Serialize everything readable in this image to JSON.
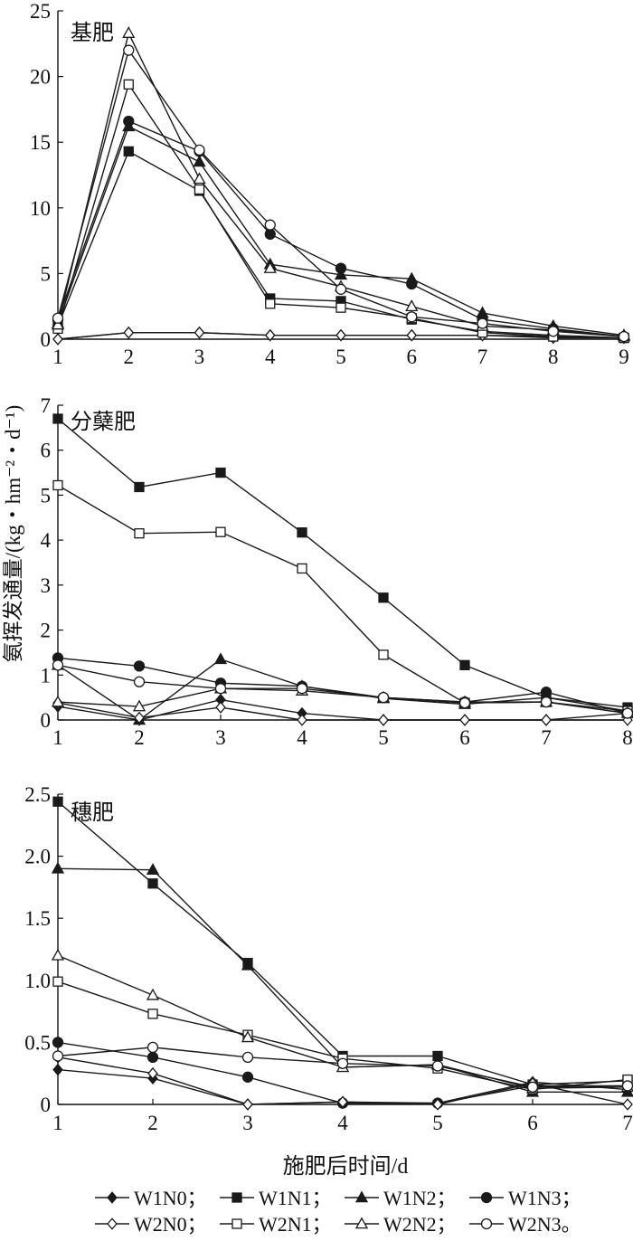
{
  "ylabel": "氨挥发通量/(kg・hm⁻²・d⁻¹)",
  "xlabel": "施肥后时间/d",
  "colors": {
    "ink": "#1a1a1a",
    "background": "#ffffff"
  },
  "legend": {
    "items": [
      {
        "label": "W1N0；",
        "marker": "diamond",
        "fill": "filled"
      },
      {
        "label": "W1N1；",
        "marker": "square",
        "fill": "filled"
      },
      {
        "label": "W1N2；",
        "marker": "triangle",
        "fill": "filled"
      },
      {
        "label": "W1N3；",
        "marker": "circle",
        "fill": "filled"
      },
      {
        "label": "W2N0；",
        "marker": "diamond",
        "fill": "open"
      },
      {
        "label": "W2N1；",
        "marker": "square",
        "fill": "open"
      },
      {
        "label": "W2N2；",
        "marker": "triangle",
        "fill": "open"
      },
      {
        "label": "W2N3。",
        "marker": "circle",
        "fill": "open"
      }
    ]
  },
  "chart_data": [
    {
      "type": "line",
      "title": "基肥",
      "x": [
        1,
        2,
        3,
        4,
        5,
        6,
        7,
        8,
        9
      ],
      "xlim": [
        1,
        9
      ],
      "ylim": [
        0,
        25
      ],
      "yticks": [
        0,
        5,
        10,
        15,
        20,
        25
      ],
      "series": [
        {
          "name": "W1N0",
          "values": [
            0.0,
            0.5,
            0.5,
            0.3,
            0.3,
            0.3,
            0.3,
            0.2,
            0.1
          ]
        },
        {
          "name": "W1N1",
          "values": [
            1.0,
            14.3,
            11.3,
            3.1,
            2.9,
            1.5,
            0.6,
            0.3,
            0.1
          ]
        },
        {
          "name": "W1N2",
          "values": [
            1.2,
            16.2,
            13.5,
            5.7,
            4.9,
            4.6,
            2.0,
            1.0,
            0.3
          ]
        },
        {
          "name": "W1N3",
          "values": [
            1.5,
            16.6,
            14.3,
            8.0,
            5.4,
            4.2,
            1.5,
            0.8,
            0.2
          ]
        },
        {
          "name": "W2N0",
          "values": [
            0.0,
            0.5,
            0.5,
            0.3,
            0.3,
            0.3,
            0.3,
            0.1,
            0.1
          ]
        },
        {
          "name": "W2N1",
          "values": [
            0.8,
            19.4,
            11.4,
            2.7,
            2.4,
            1.6,
            0.5,
            0.2,
            0.1
          ]
        },
        {
          "name": "W2N2",
          "values": [
            1.1,
            23.3,
            12.2,
            5.4,
            4.0,
            2.5,
            1.0,
            0.7,
            0.2
          ]
        },
        {
          "name": "W2N3",
          "values": [
            1.6,
            22.0,
            14.4,
            8.7,
            3.8,
            1.7,
            1.2,
            0.6,
            0.2
          ]
        }
      ]
    },
    {
      "type": "line",
      "title": "分蘖肥",
      "x": [
        1,
        2,
        3,
        4,
        5,
        6,
        7,
        8
      ],
      "xlim": [
        1,
        8
      ],
      "ylim": [
        0,
        7
      ],
      "yticks": [
        0,
        1,
        2,
        3,
        4,
        5,
        6,
        7
      ],
      "series": [
        {
          "name": "W1N0",
          "values": [
            0.3,
            0.0,
            0.45,
            0.15,
            0.0,
            0.0,
            0.0,
            0.15
          ]
        },
        {
          "name": "W1N1",
          "values": [
            6.7,
            5.18,
            5.5,
            4.17,
            2.72,
            1.22,
            0.5,
            0.28
          ]
        },
        {
          "name": "W1N2",
          "values": [
            1.22,
            0.0,
            1.35,
            0.75,
            0.48,
            0.35,
            0.5,
            0.2
          ]
        },
        {
          "name": "W1N3",
          "values": [
            1.38,
            1.2,
            0.82,
            0.75,
            0.5,
            0.4,
            0.62,
            0.15
          ]
        },
        {
          "name": "W2N0",
          "values": [
            0.38,
            0.05,
            0.28,
            0.0,
            0.0,
            0.0,
            0.0,
            0.0
          ]
        },
        {
          "name": "W2N1",
          "values": [
            5.22,
            4.15,
            4.18,
            3.37,
            1.45,
            0.38,
            0.4,
            0.2
          ]
        },
        {
          "name": "W2N2",
          "values": [
            0.4,
            0.3,
            0.7,
            0.65,
            0.5,
            0.4,
            0.4,
            0.15
          ]
        },
        {
          "name": "W2N3",
          "values": [
            1.22,
            0.85,
            0.7,
            0.7,
            0.5,
            0.38,
            0.4,
            0.15
          ]
        }
      ]
    },
    {
      "type": "line",
      "title": "穗肥",
      "x": [
        1,
        2,
        3,
        4,
        5,
        6,
        7
      ],
      "xlim": [
        1,
        7
      ],
      "ylim": [
        0,
        2.5
      ],
      "yticks": [
        0,
        0.5,
        1.0,
        1.5,
        2.0,
        2.5
      ],
      "ytick_labels": [
        "0",
        "0.5",
        "1.0",
        "1.5",
        "2.0",
        "2.5"
      ],
      "series": [
        {
          "name": "W1N0",
          "values": [
            0.28,
            0.21,
            0.0,
            0.02,
            0.01,
            0.18,
            0.12
          ]
        },
        {
          "name": "W1N1",
          "values": [
            2.44,
            1.78,
            1.14,
            0.39,
            0.39,
            0.16,
            0.19
          ]
        },
        {
          "name": "W1N2",
          "values": [
            1.9,
            1.89,
            1.12,
            0.3,
            0.32,
            0.1,
            0.1
          ]
        },
        {
          "name": "W1N3",
          "values": [
            0.5,
            0.38,
            0.22,
            0.01,
            0.01,
            0.15,
            0.15
          ]
        },
        {
          "name": "W2N0",
          "values": [
            0.38,
            0.25,
            0.0,
            0.02,
            0.0,
            0.17,
            0.0
          ]
        },
        {
          "name": "W2N1",
          "values": [
            0.99,
            0.73,
            0.56,
            0.37,
            0.29,
            0.12,
            0.2
          ]
        },
        {
          "name": "W2N2",
          "values": [
            1.2,
            0.88,
            0.54,
            0.3,
            0.32,
            0.13,
            0.14
          ]
        },
        {
          "name": "W2N3",
          "values": [
            0.39,
            0.46,
            0.38,
            0.33,
            0.31,
            0.14,
            0.15
          ]
        }
      ]
    }
  ]
}
